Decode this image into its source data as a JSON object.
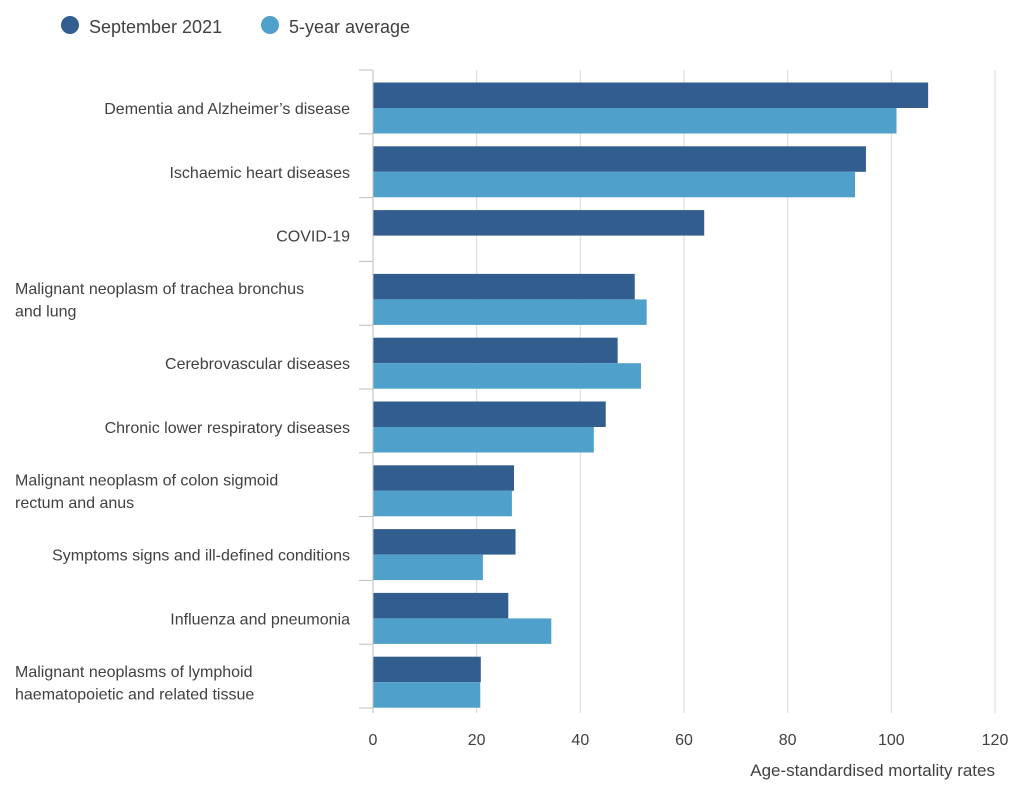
{
  "chart_data": {
    "type": "bar",
    "orientation": "horizontal",
    "title": "",
    "xlabel": "Age-standardised mortality rates",
    "ylabel": "",
    "xlim": [
      0,
      120
    ],
    "x_ticks": [
      0,
      20,
      40,
      60,
      80,
      100,
      120
    ],
    "grid": true,
    "legend_position": "top-left",
    "categories": [
      [
        "Dementia and Alzheimer’s disease"
      ],
      [
        "Ischaemic heart diseases"
      ],
      [
        "COVID-19"
      ],
      [
        "Malignant neoplasm of trachea bronchus",
        "and lung"
      ],
      [
        "Cerebrovascular diseases"
      ],
      [
        "Chronic lower respiratory diseases"
      ],
      [
        "Malignant neoplasm of colon sigmoid",
        "rectum and anus"
      ],
      [
        "Symptoms signs and ill-defined conditions"
      ],
      [
        "Influenza and pneumonia"
      ],
      [
        "Malignant neoplasms of lymphoid",
        "haematopoietic and related tissue"
      ]
    ],
    "series": [
      {
        "name": "September 2021",
        "color": "#325d8f",
        "values": [
          107.1,
          95.1,
          63.9,
          50.5,
          47.2,
          44.9,
          27.2,
          27.5,
          26.1,
          20.8
        ]
      },
      {
        "name": "5-year average",
        "color": "#4fa0ca",
        "values": [
          101.0,
          93.0,
          null,
          52.8,
          51.7,
          42.6,
          26.8,
          21.2,
          34.4,
          20.7
        ]
      }
    ]
  }
}
